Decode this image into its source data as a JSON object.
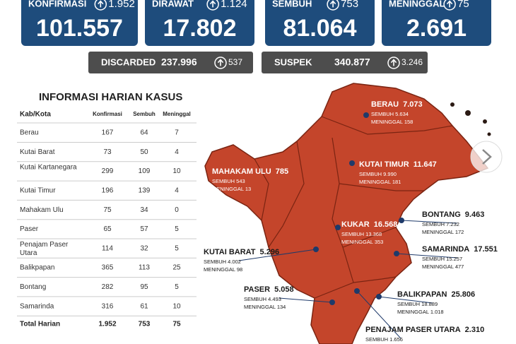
{
  "stats": [
    {
      "label": "KONFIRMASI",
      "delta": "1.952",
      "value": "101.557"
    },
    {
      "label": "DIRAWAT",
      "delta": "1.124",
      "value": "17.802"
    },
    {
      "label": "SEMBUH",
      "delta": "753",
      "value": "81.064"
    },
    {
      "label": "MENINGGAL",
      "delta": "75",
      "value": "2.691"
    }
  ],
  "secondary": [
    {
      "label": "DISCARDED",
      "value": "237.996",
      "delta": "537"
    },
    {
      "label": "SUSPEK",
      "value": "340.877",
      "delta": "3.246"
    }
  ],
  "table": {
    "title": "INFORMASI HARIAN KASUS",
    "header": [
      "Kab/Kota",
      "Konfirmasi",
      "Sembuh",
      "Meninggal"
    ],
    "rows": [
      [
        "Berau",
        "167",
        "64",
        "7"
      ],
      [
        "Kutai Barat",
        "73",
        "50",
        "4"
      ],
      [
        "Kutai Kartanegara",
        "299",
        "109",
        "10"
      ],
      [
        "Kutai Timur",
        "196",
        "139",
        "4"
      ],
      [
        "Mahakam Ulu",
        "75",
        "34",
        "0"
      ],
      [
        "Paser",
        "65",
        "57",
        "5"
      ],
      [
        "Penajam Paser Utara",
        "114",
        "32",
        "5"
      ],
      [
        "Balikpapan",
        "365",
        "113",
        "25"
      ],
      [
        "Bontang",
        "282",
        "95",
        "5"
      ],
      [
        "Samarinda",
        "316",
        "61",
        "10"
      ]
    ],
    "total": [
      "Total Harian",
      "1.952",
      "753",
      "75"
    ]
  },
  "regions": [
    {
      "name": "BERAU",
      "value": "7.073",
      "sembuh": "SEMBUH 5.634",
      "meninggal": "MENINGGAL 158"
    },
    {
      "name": "MAHAKAM ULU",
      "value": "785",
      "sembuh": "SEMBUH 543",
      "meninggal": "MENINGGAL 13"
    },
    {
      "name": "KUTAI TIMUR",
      "value": "11.647",
      "sembuh": "SEMBUH 9.990",
      "meninggal": "MENINGGAL 181"
    },
    {
      "name": "KUKAR",
      "value": "16.568",
      "sembuh": "SEMBUH 13.368",
      "meninggal": "MENINGGAL 353"
    },
    {
      "name": "BONTANG",
      "value": "9.463",
      "sembuh": "SEMBUH 7.232",
      "meninggal": "MENINGGAL 172"
    },
    {
      "name": "KUTAI BARAT",
      "value": "5.296",
      "sembuh": "SEMBUH 4.002",
      "meninggal": "MENINGGAL 98"
    },
    {
      "name": "SAMARINDA",
      "value": "17.551",
      "sembuh": "SEMBUH 15.257",
      "meninggal": "MENINGGAL 477"
    },
    {
      "name": "PASER",
      "value": "5.058",
      "sembuh": "SEMBUH 4.493",
      "meninggal": "MENINGGAL 134"
    },
    {
      "name": "BALIKPAPAN",
      "value": "25.806",
      "sembuh": "SEMBUH 18.889",
      "meninggal": "MENINGGAL 1.018"
    },
    {
      "name": "PENAJAM PASER UTARA",
      "value": "2.310",
      "sembuh": "SEMBUH 1.656"
    }
  ]
}
